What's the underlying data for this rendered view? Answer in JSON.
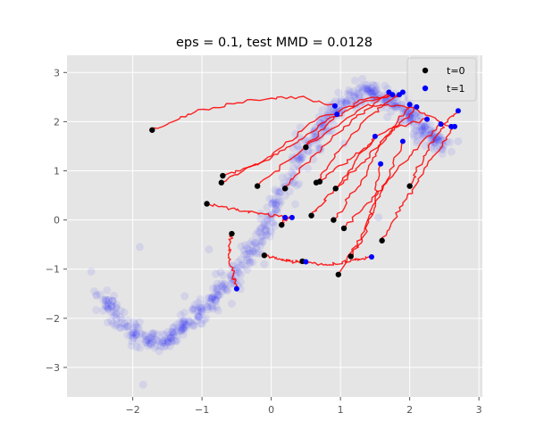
{
  "chart_data": {
    "type": "scatter",
    "title": "eps = 0.1, test MMD = 0.0128",
    "xlabel": "",
    "ylabel": "",
    "xlim": [
      -2.95,
      3.05
    ],
    "ylim": [
      -3.6,
      3.35
    ],
    "xticks": [
      -2,
      -1,
      0,
      1,
      2,
      3
    ],
    "yticks": [
      -3,
      -2,
      -1,
      0,
      1,
      2,
      3
    ],
    "xtick_labels": [
      "−2",
      "−1",
      "0",
      "1",
      "2",
      "3"
    ],
    "ytick_labels": [
      "−3",
      "−2",
      "−1",
      "0",
      "1",
      "2",
      "3"
    ],
    "grid": true,
    "legend_position": "top-right",
    "legend": [
      {
        "label": "t=0",
        "color": "#000000"
      },
      {
        "label": "t=1",
        "color": "#0000ff"
      }
    ],
    "colors": {
      "background": "#e5e5e5",
      "target_cloud": "#0000ff",
      "trajectory": "#ff0000",
      "start": "#000000",
      "end": "#0000ff"
    },
    "target_distribution": {
      "description_curve_x": [
        -2.45,
        -2.3,
        -2.1,
        -1.9,
        -1.7,
        -1.5,
        -1.3,
        -1.1,
        -0.9,
        -0.7,
        -0.5,
        -0.3,
        -0.1,
        0.1,
        0.3,
        0.5,
        0.7,
        0.9,
        1.1,
        1.3,
        1.5,
        1.7,
        1.9,
        2.1,
        2.3,
        2.5
      ],
      "description_curve_y": [
        -1.55,
        -1.85,
        -2.15,
        -2.35,
        -2.45,
        -2.42,
        -2.25,
        -1.98,
        -1.68,
        -1.38,
        -1.05,
        -0.65,
        -0.2,
        0.3,
        0.85,
        1.4,
        1.85,
        2.22,
        2.48,
        2.6,
        2.58,
        2.45,
        2.2,
        1.95,
        1.7,
        1.5
      ],
      "outliers": [
        [
          -2.6,
          -1.05
        ],
        [
          -1.9,
          -0.55
        ],
        [
          -1.85,
          -3.35
        ],
        [
          -0.9,
          -0.6
        ],
        [
          -1.25,
          -1.55
        ],
        [
          -0.8,
          -1.1
        ],
        [
          0.35,
          1.75
        ],
        [
          1.05,
          1.55
        ],
        [
          2.7,
          1.6
        ],
        [
          1.55,
          0.05
        ],
        [
          -0.1,
          -0.9
        ]
      ]
    },
    "trajectories": [
      {
        "start": [
          -1.72,
          1.83
        ],
        "end": [
          0.92,
          2.32
        ],
        "path": [
          [
            -1.72,
            1.83
          ],
          [
            -1.1,
            2.2
          ],
          [
            -0.3,
            2.45
          ],
          [
            0.4,
            2.5
          ],
          [
            0.92,
            2.32
          ]
        ]
      },
      {
        "start": [
          -0.7,
          0.9
        ],
        "end": [
          0.95,
          2.15
        ],
        "path": [
          [
            -0.7,
            0.9
          ],
          [
            -0.1,
            1.2
          ],
          [
            0.45,
            1.65
          ],
          [
            0.95,
            2.15
          ]
        ]
      },
      {
        "start": [
          -0.72,
          0.76
        ],
        "end": [
          1.75,
          2.55
        ],
        "path": [
          [
            -0.72,
            0.76
          ],
          [
            0.0,
            1.3
          ],
          [
            0.7,
            2.1
          ],
          [
            1.75,
            2.55
          ]
        ]
      },
      {
        "start": [
          -0.2,
          0.69
        ],
        "end": [
          2.6,
          1.9
        ],
        "path": [
          [
            -0.2,
            0.69
          ],
          [
            0.5,
            1.5
          ],
          [
            1.4,
            2.35
          ],
          [
            2.0,
            2.3
          ],
          [
            2.6,
            1.9
          ]
        ]
      },
      {
        "start": [
          0.5,
          1.48
        ],
        "end": [
          1.85,
          2.55
        ],
        "path": [
          [
            0.5,
            1.48
          ],
          [
            0.9,
            2.05
          ],
          [
            1.3,
            2.45
          ],
          [
            1.85,
            2.55
          ]
        ]
      },
      {
        "start": [
          0.2,
          0.64
        ],
        "end": [
          1.7,
          2.6
        ],
        "path": [
          [
            0.2,
            0.64
          ],
          [
            0.6,
            1.3
          ],
          [
            1.05,
            1.9
          ],
          [
            1.7,
            2.6
          ]
        ]
      },
      {
        "start": [
          0.65,
          0.76
        ],
        "end": [
          1.9,
          2.6
        ],
        "path": [
          [
            0.65,
            0.76
          ],
          [
            1.0,
            1.45
          ],
          [
            1.4,
            2.1
          ],
          [
            1.9,
            2.6
          ]
        ]
      },
      {
        "start": [
          0.7,
          0.78
        ],
        "end": [
          2.25,
          2.05
        ],
        "path": [
          [
            0.7,
            0.78
          ],
          [
            1.2,
            1.3
          ],
          [
            1.7,
            1.85
          ],
          [
            2.25,
            2.05
          ]
        ]
      },
      {
        "start": [
          0.93,
          0.64
        ],
        "end": [
          2.1,
          2.3
        ],
        "path": [
          [
            0.93,
            0.64
          ],
          [
            1.3,
            1.15
          ],
          [
            1.7,
            1.75
          ],
          [
            2.1,
            2.3
          ]
        ]
      },
      {
        "start": [
          0.58,
          0.09
        ],
        "end": [
          1.5,
          1.7
        ],
        "path": [
          [
            0.58,
            0.09
          ],
          [
            0.9,
            0.6
          ],
          [
            1.2,
            1.15
          ],
          [
            1.5,
            1.7
          ]
        ]
      },
      {
        "start": [
          0.9,
          0.0
        ],
        "end": [
          2.0,
          2.35
        ],
        "path": [
          [
            0.9,
            0.0
          ],
          [
            1.3,
            0.8
          ],
          [
            1.6,
            1.55
          ],
          [
            2.0,
            2.35
          ]
        ]
      },
      {
        "start": [
          1.05,
          -0.17
        ],
        "end": [
          2.45,
          1.95
        ],
        "path": [
          [
            1.05,
            -0.17
          ],
          [
            1.5,
            0.5
          ],
          [
            2.0,
            1.3
          ],
          [
            2.45,
            1.95
          ]
        ]
      },
      {
        "start": [
          2.0,
          0.69
        ],
        "end": [
          2.7,
          2.22
        ],
        "path": [
          [
            2.0,
            0.69
          ],
          [
            2.2,
            1.3
          ],
          [
            2.45,
            1.85
          ],
          [
            2.7,
            2.22
          ]
        ]
      },
      {
        "start": [
          1.6,
          -0.42
        ],
        "end": [
          2.65,
          1.9
        ],
        "path": [
          [
            1.6,
            -0.42
          ],
          [
            1.9,
            0.3
          ],
          [
            2.25,
            1.1
          ],
          [
            2.65,
            1.9
          ]
        ]
      },
      {
        "start": [
          1.15,
          -0.74
        ],
        "end": [
          1.58,
          1.14
        ],
        "path": [
          [
            1.15,
            -0.74
          ],
          [
            1.35,
            -0.3
          ],
          [
            1.5,
            0.4
          ],
          [
            1.58,
            1.14
          ]
        ]
      },
      {
        "start": [
          0.97,
          -1.11
        ],
        "end": [
          1.9,
          1.6
        ],
        "path": [
          [
            0.97,
            -1.11
          ],
          [
            1.3,
            -0.3
          ],
          [
            1.6,
            0.6
          ],
          [
            1.9,
            1.6
          ]
        ]
      },
      {
        "start": [
          0.45,
          -0.84
        ],
        "end": [
          1.45,
          -0.75
        ],
        "path": [
          [
            0.45,
            -0.84
          ],
          [
            0.8,
            -0.92
          ],
          [
            1.15,
            -0.82
          ],
          [
            1.45,
            -0.75
          ]
        ]
      },
      {
        "start": [
          0.15,
          -0.1
        ],
        "end": [
          0.3,
          0.05
        ],
        "path": [
          [
            0.15,
            -0.1
          ],
          [
            0.2,
            0.0
          ],
          [
            0.3,
            0.05
          ]
        ]
      },
      {
        "start": [
          -0.93,
          0.33
        ],
        "end": [
          0.2,
          0.05
        ],
        "path": [
          [
            -0.93,
            0.33
          ],
          [
            -0.5,
            0.2
          ],
          [
            -0.1,
            0.12
          ],
          [
            0.2,
            0.05
          ]
        ]
      },
      {
        "start": [
          -0.57,
          -0.28
        ],
        "end": [
          -0.5,
          -1.4
        ],
        "path": [
          [
            -0.57,
            -0.28
          ],
          [
            -0.62,
            -0.7
          ],
          [
            -0.55,
            -1.1
          ],
          [
            -0.5,
            -1.4
          ]
        ]
      },
      {
        "start": [
          -0.1,
          -0.72
        ],
        "end": [
          0.5,
          -0.85
        ],
        "path": [
          [
            -0.1,
            -0.72
          ],
          [
            0.1,
            -0.8
          ],
          [
            0.3,
            -0.85
          ],
          [
            0.5,
            -0.85
          ]
        ]
      }
    ]
  }
}
